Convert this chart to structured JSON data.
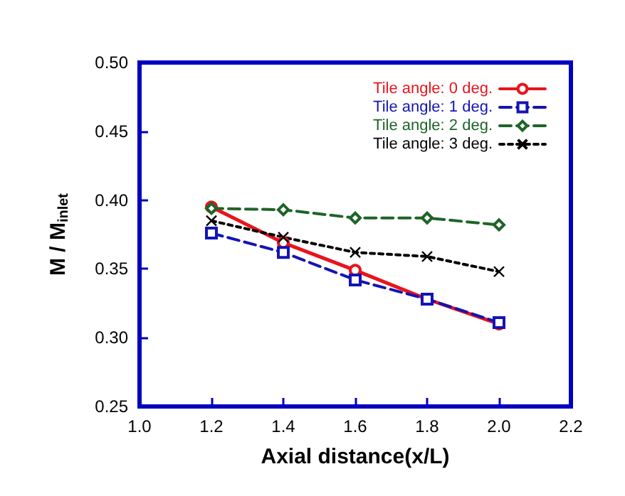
{
  "chart_data": {
    "type": "line",
    "xlabel": "Axial distance(x/L)",
    "ylabel": "M / M$_{inlet}$",
    "x": [
      1.2,
      1.4,
      1.6,
      1.8,
      2.0
    ],
    "xlim": [
      1.0,
      2.2
    ],
    "xticks": [
      {
        "value": 1.0,
        "label": "1.0"
      },
      {
        "value": 1.2,
        "label": "1.2"
      },
      {
        "value": 1.4,
        "label": "1.4"
      },
      {
        "value": 1.6,
        "label": "1.6"
      },
      {
        "value": 1.8,
        "label": "1.8"
      },
      {
        "value": 2.0,
        "label": "2.0"
      },
      {
        "value": 2.2,
        "label": "2.2"
      }
    ],
    "ylim": [
      0.25,
      0.5
    ],
    "yticks": [
      {
        "value": 0.25,
        "label": "0.25"
      },
      {
        "value": 0.3,
        "label": "0.30"
      },
      {
        "value": 0.35,
        "label": "0.35"
      },
      {
        "value": 0.4,
        "label": "0.40"
      },
      {
        "value": 0.45,
        "label": "0.45"
      },
      {
        "value": 0.5,
        "label": "0.50"
      }
    ],
    "grid": false,
    "legend": "top right",
    "series": [
      {
        "name": "Tile angle: 0 deg.",
        "color": "#e8141c",
        "marker": "circle",
        "line_style": "solid",
        "values": [
          0.395,
          0.369,
          0.349,
          0.328,
          0.31
        ]
      },
      {
        "name": "Tile angle: 1 deg.",
        "color": "#1414b4",
        "marker": "square",
        "line_style": "dashed",
        "values": [
          0.376,
          0.362,
          0.342,
          0.328,
          0.311
        ]
      },
      {
        "name": "Tile angle: 2 deg.",
        "color": "#1e6428",
        "marker": "diamond",
        "line_style": "dashed",
        "values": [
          0.394,
          0.393,
          0.387,
          0.387,
          0.382
        ]
      },
      {
        "name": "Tile angle: 3 deg.",
        "color": "#000000",
        "marker": "cross",
        "line_style": "dotted",
        "values": [
          0.385,
          0.373,
          0.362,
          0.359,
          0.348
        ]
      }
    ]
  }
}
